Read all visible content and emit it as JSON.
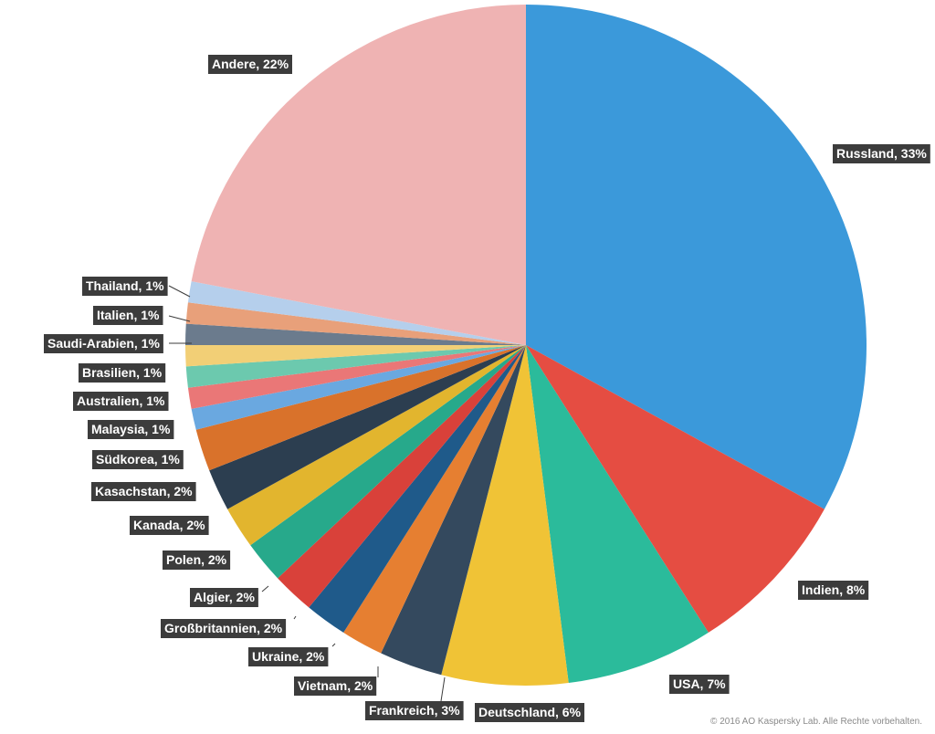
{
  "chart_data": {
    "type": "pie",
    "start_angle_deg": 0,
    "direction": "clockwise",
    "slices": [
      {
        "label": "Russland, 33%",
        "name": "Russland",
        "value": 33,
        "color": "#3b99da"
      },
      {
        "label": "Indien, 8%",
        "name": "Indien",
        "value": 8,
        "color": "#e54d42"
      },
      {
        "label": "USA, 7%",
        "name": "USA",
        "value": 7,
        "color": "#2bbb9b"
      },
      {
        "label": "Deutschland, 6%",
        "name": "Deutschland",
        "value": 6,
        "color": "#f0c336"
      },
      {
        "label": "Frankreich, 3%",
        "name": "Frankreich",
        "value": 3,
        "color": "#34495e"
      },
      {
        "label": "Vietnam, 2%",
        "name": "Vietnam",
        "value": 2,
        "color": "#e67f31"
      },
      {
        "label": "Ukraine, 2%",
        "name": "Ukraine",
        "value": 2,
        "color": "#1f5a8a"
      },
      {
        "label": "Großbritannien, 2%",
        "name": "Großbritannien",
        "value": 2,
        "color": "#d9413a"
      },
      {
        "label": "Algier, 2%",
        "name": "Algier",
        "value": 2,
        "color": "#27a98b"
      },
      {
        "label": "Polen, 2%",
        "name": "Polen",
        "value": 2,
        "color": "#e2b52e"
      },
      {
        "label": "Kanada, 2%",
        "name": "Kanada",
        "value": 2,
        "color": "#2c3e50"
      },
      {
        "label": "Kasachstan, 2%",
        "name": "Kasachstan",
        "value": 2,
        "color": "#d9722b"
      },
      {
        "label": "Südkorea,  1%",
        "name": "Südkorea",
        "value": 1,
        "color": "#6aa8e0"
      },
      {
        "label": "Malaysia, 1%",
        "name": "Malaysia",
        "value": 1,
        "color": "#ea7777"
      },
      {
        "label": "Australien, 1%",
        "name": "Australien",
        "value": 1,
        "color": "#6cc9ae"
      },
      {
        "label": "Brasilien, 1%",
        "name": "Brasilien",
        "value": 1,
        "color": "#f2cf76"
      },
      {
        "label": "Saudi-Arabien,  1%",
        "name": "Saudi-Arabien",
        "value": 1,
        "color": "#6b7b8d"
      },
      {
        "label": "Italien, 1%",
        "name": "Italien",
        "value": 1,
        "color": "#e8a07a"
      },
      {
        "label": "Thailand, 1%",
        "name": "Thailand",
        "value": 1,
        "color": "#b5cfec"
      },
      {
        "label": "Andere, 22%",
        "name": "Andere",
        "value": 22,
        "color": "#efb3b3"
      }
    ]
  },
  "footer": {
    "copyright": "© 2016 AO Kaspersky Lab. Alle Rechte vorbehalten."
  },
  "style": {
    "label_bg": "#3c3c3c",
    "label_text": "#ffffff",
    "leader_line": "#3c3c3c"
  }
}
